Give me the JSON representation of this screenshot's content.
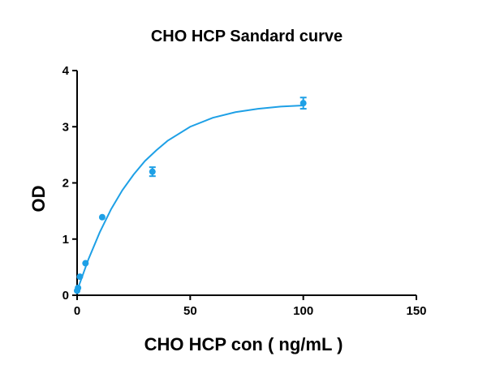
{
  "chart_data": {
    "type": "scatter",
    "title": "CHO HCP Sandard  curve",
    "xlabel": "CHO HCP con ( ng/mL )",
    "ylabel": "OD",
    "xlim": [
      0,
      150
    ],
    "ylim": [
      0,
      4
    ],
    "x_ticks": [
      0,
      50,
      100,
      150
    ],
    "y_ticks": [
      0,
      1,
      2,
      3,
      4
    ],
    "grid": false,
    "legend": "none",
    "colors": {
      "series": "#1ea0e6",
      "axis": "#000000"
    },
    "series": [
      {
        "points": [
          {
            "x": 0,
            "y": 0.08
          },
          {
            "x": 0.41,
            "y": 0.13
          },
          {
            "x": 1.23,
            "y": 0.33
          },
          {
            "x": 3.7,
            "y": 0.57
          },
          {
            "x": 11.1,
            "y": 1.39
          },
          {
            "x": 33.3,
            "y": 2.2,
            "err": 0.08
          },
          {
            "x": 100,
            "y": 3.42,
            "err": 0.1
          }
        ],
        "fit_curve": [
          {
            "x": 0,
            "y": 0.08
          },
          {
            "x": 5,
            "y": 0.64
          },
          {
            "x": 10,
            "y": 1.12
          },
          {
            "x": 15,
            "y": 1.53
          },
          {
            "x": 20,
            "y": 1.87
          },
          {
            "x": 25,
            "y": 2.15
          },
          {
            "x": 30,
            "y": 2.39
          },
          {
            "x": 35,
            "y": 2.58
          },
          {
            "x": 40,
            "y": 2.75
          },
          {
            "x": 50,
            "y": 3.0
          },
          {
            "x": 60,
            "y": 3.16
          },
          {
            "x": 70,
            "y": 3.26
          },
          {
            "x": 80,
            "y": 3.32
          },
          {
            "x": 90,
            "y": 3.36
          },
          {
            "x": 100,
            "y": 3.38
          }
        ]
      }
    ]
  }
}
